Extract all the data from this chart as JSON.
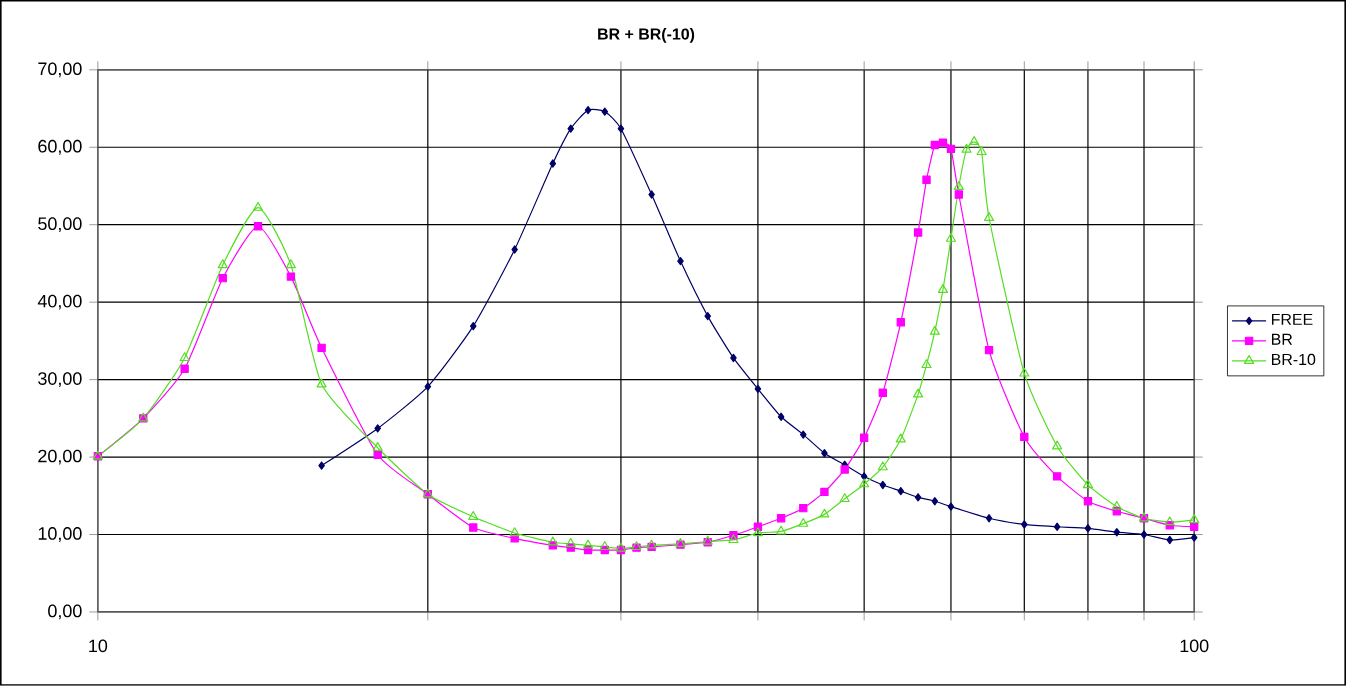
{
  "chart_data": {
    "type": "line",
    "title": "BR + BR(-10)",
    "log": "x",
    "grid": true,
    "legend": "right",
    "xlim": [
      10,
      100
    ],
    "xticks": [
      10,
      {
        "value": 20,
        "label": null
      },
      {
        "value": 30,
        "label": null
      },
      {
        "value": 40,
        "label": null
      },
      {
        "value": 50,
        "label": null
      },
      {
        "value": 60,
        "label": null
      },
      {
        "value": 70,
        "label": null
      },
      {
        "value": 80,
        "label": null
      },
      {
        "value": 90,
        "label": null
      },
      100
    ],
    "ylim": [
      0,
      70
    ],
    "yticks": [
      {
        "value": 0,
        "label": "0,00"
      },
      {
        "value": 10,
        "label": "10,00"
      },
      {
        "value": 20,
        "label": "20,00"
      },
      {
        "value": 30,
        "label": "30,00"
      },
      {
        "value": 40,
        "label": "40,00"
      },
      {
        "value": 50,
        "label": "50,00"
      },
      {
        "value": 60,
        "label": "60,00"
      },
      {
        "value": 70,
        "label": "70,00"
      }
    ],
    "series": [
      {
        "name": "FREE",
        "color": "#000066",
        "marker": "diamond",
        "x": [
          16,
          18,
          20,
          22,
          24,
          26,
          27,
          28,
          29,
          30,
          32,
          34,
          36,
          38,
          40,
          42,
          44,
          46,
          48,
          50,
          52,
          54,
          56,
          58,
          60,
          65,
          70,
          75,
          80,
          85,
          90,
          95,
          100
        ],
        "values": [
          18.9,
          23.7,
          29.1,
          36.9,
          46.8,
          57.9,
          62.4,
          64.8,
          64.6,
          62.4,
          53.9,
          45.3,
          38.2,
          32.8,
          28.8,
          25.2,
          22.9,
          20.5,
          19.0,
          17.5,
          16.4,
          15.6,
          14.8,
          14.3,
          13.6,
          12.1,
          11.3,
          11.0,
          10.8,
          10.3,
          10.0,
          9.3,
          9.6
        ]
      },
      {
        "name": "BR",
        "color": "#ff00ff",
        "marker": "square",
        "x": [
          10,
          11,
          12,
          13,
          14,
          15,
          16,
          18,
          20,
          22,
          24,
          26,
          27,
          28,
          29,
          30,
          31,
          32,
          34,
          36,
          38,
          40,
          42,
          44,
          46,
          48,
          50,
          52,
          54,
          56,
          57,
          58,
          59,
          60,
          61,
          65,
          70,
          75,
          80,
          85,
          90,
          95,
          100
        ],
        "values": [
          20.1,
          25.0,
          31.4,
          43.1,
          49.8,
          43.3,
          34.1,
          20.3,
          15.2,
          10.9,
          9.5,
          8.6,
          8.3,
          8.0,
          8.0,
          8.0,
          8.3,
          8.4,
          8.7,
          9.0,
          9.9,
          11.0,
          12.1,
          13.4,
          15.5,
          18.4,
          22.5,
          28.3,
          37.4,
          49.0,
          55.8,
          60.3,
          60.6,
          59.8,
          53.9,
          33.8,
          22.6,
          17.5,
          14.3,
          13.0,
          12.1,
          11.2,
          11.0
        ]
      },
      {
        "name": "BR-10",
        "color": "#55dd22",
        "marker": "triangle",
        "x": [
          10,
          11,
          12,
          13,
          14,
          15,
          16,
          18,
          20,
          22,
          24,
          26,
          27,
          28,
          29,
          30,
          31,
          32,
          34,
          36,
          38,
          40,
          42,
          44,
          46,
          48,
          50,
          52,
          54,
          56,
          57,
          58,
          59,
          60,
          61,
          62,
          63,
          64,
          65,
          70,
          75,
          80,
          85,
          90,
          95,
          100
        ],
        "values": [
          20.1,
          25.0,
          32.8,
          44.8,
          52.2,
          44.8,
          29.4,
          21.2,
          15.2,
          12.3,
          10.2,
          9.0,
          8.8,
          8.6,
          8.4,
          8.2,
          8.4,
          8.6,
          8.8,
          9.1,
          9.3,
          10.2,
          10.4,
          11.4,
          12.6,
          14.6,
          16.5,
          18.7,
          22.3,
          28.1,
          31.9,
          36.2,
          41.6,
          48.2,
          54.9,
          59.7,
          60.7,
          59.4,
          50.9,
          30.8,
          21.4,
          16.4,
          13.6,
          12.1,
          11.6,
          11.9
        ]
      }
    ]
  }
}
